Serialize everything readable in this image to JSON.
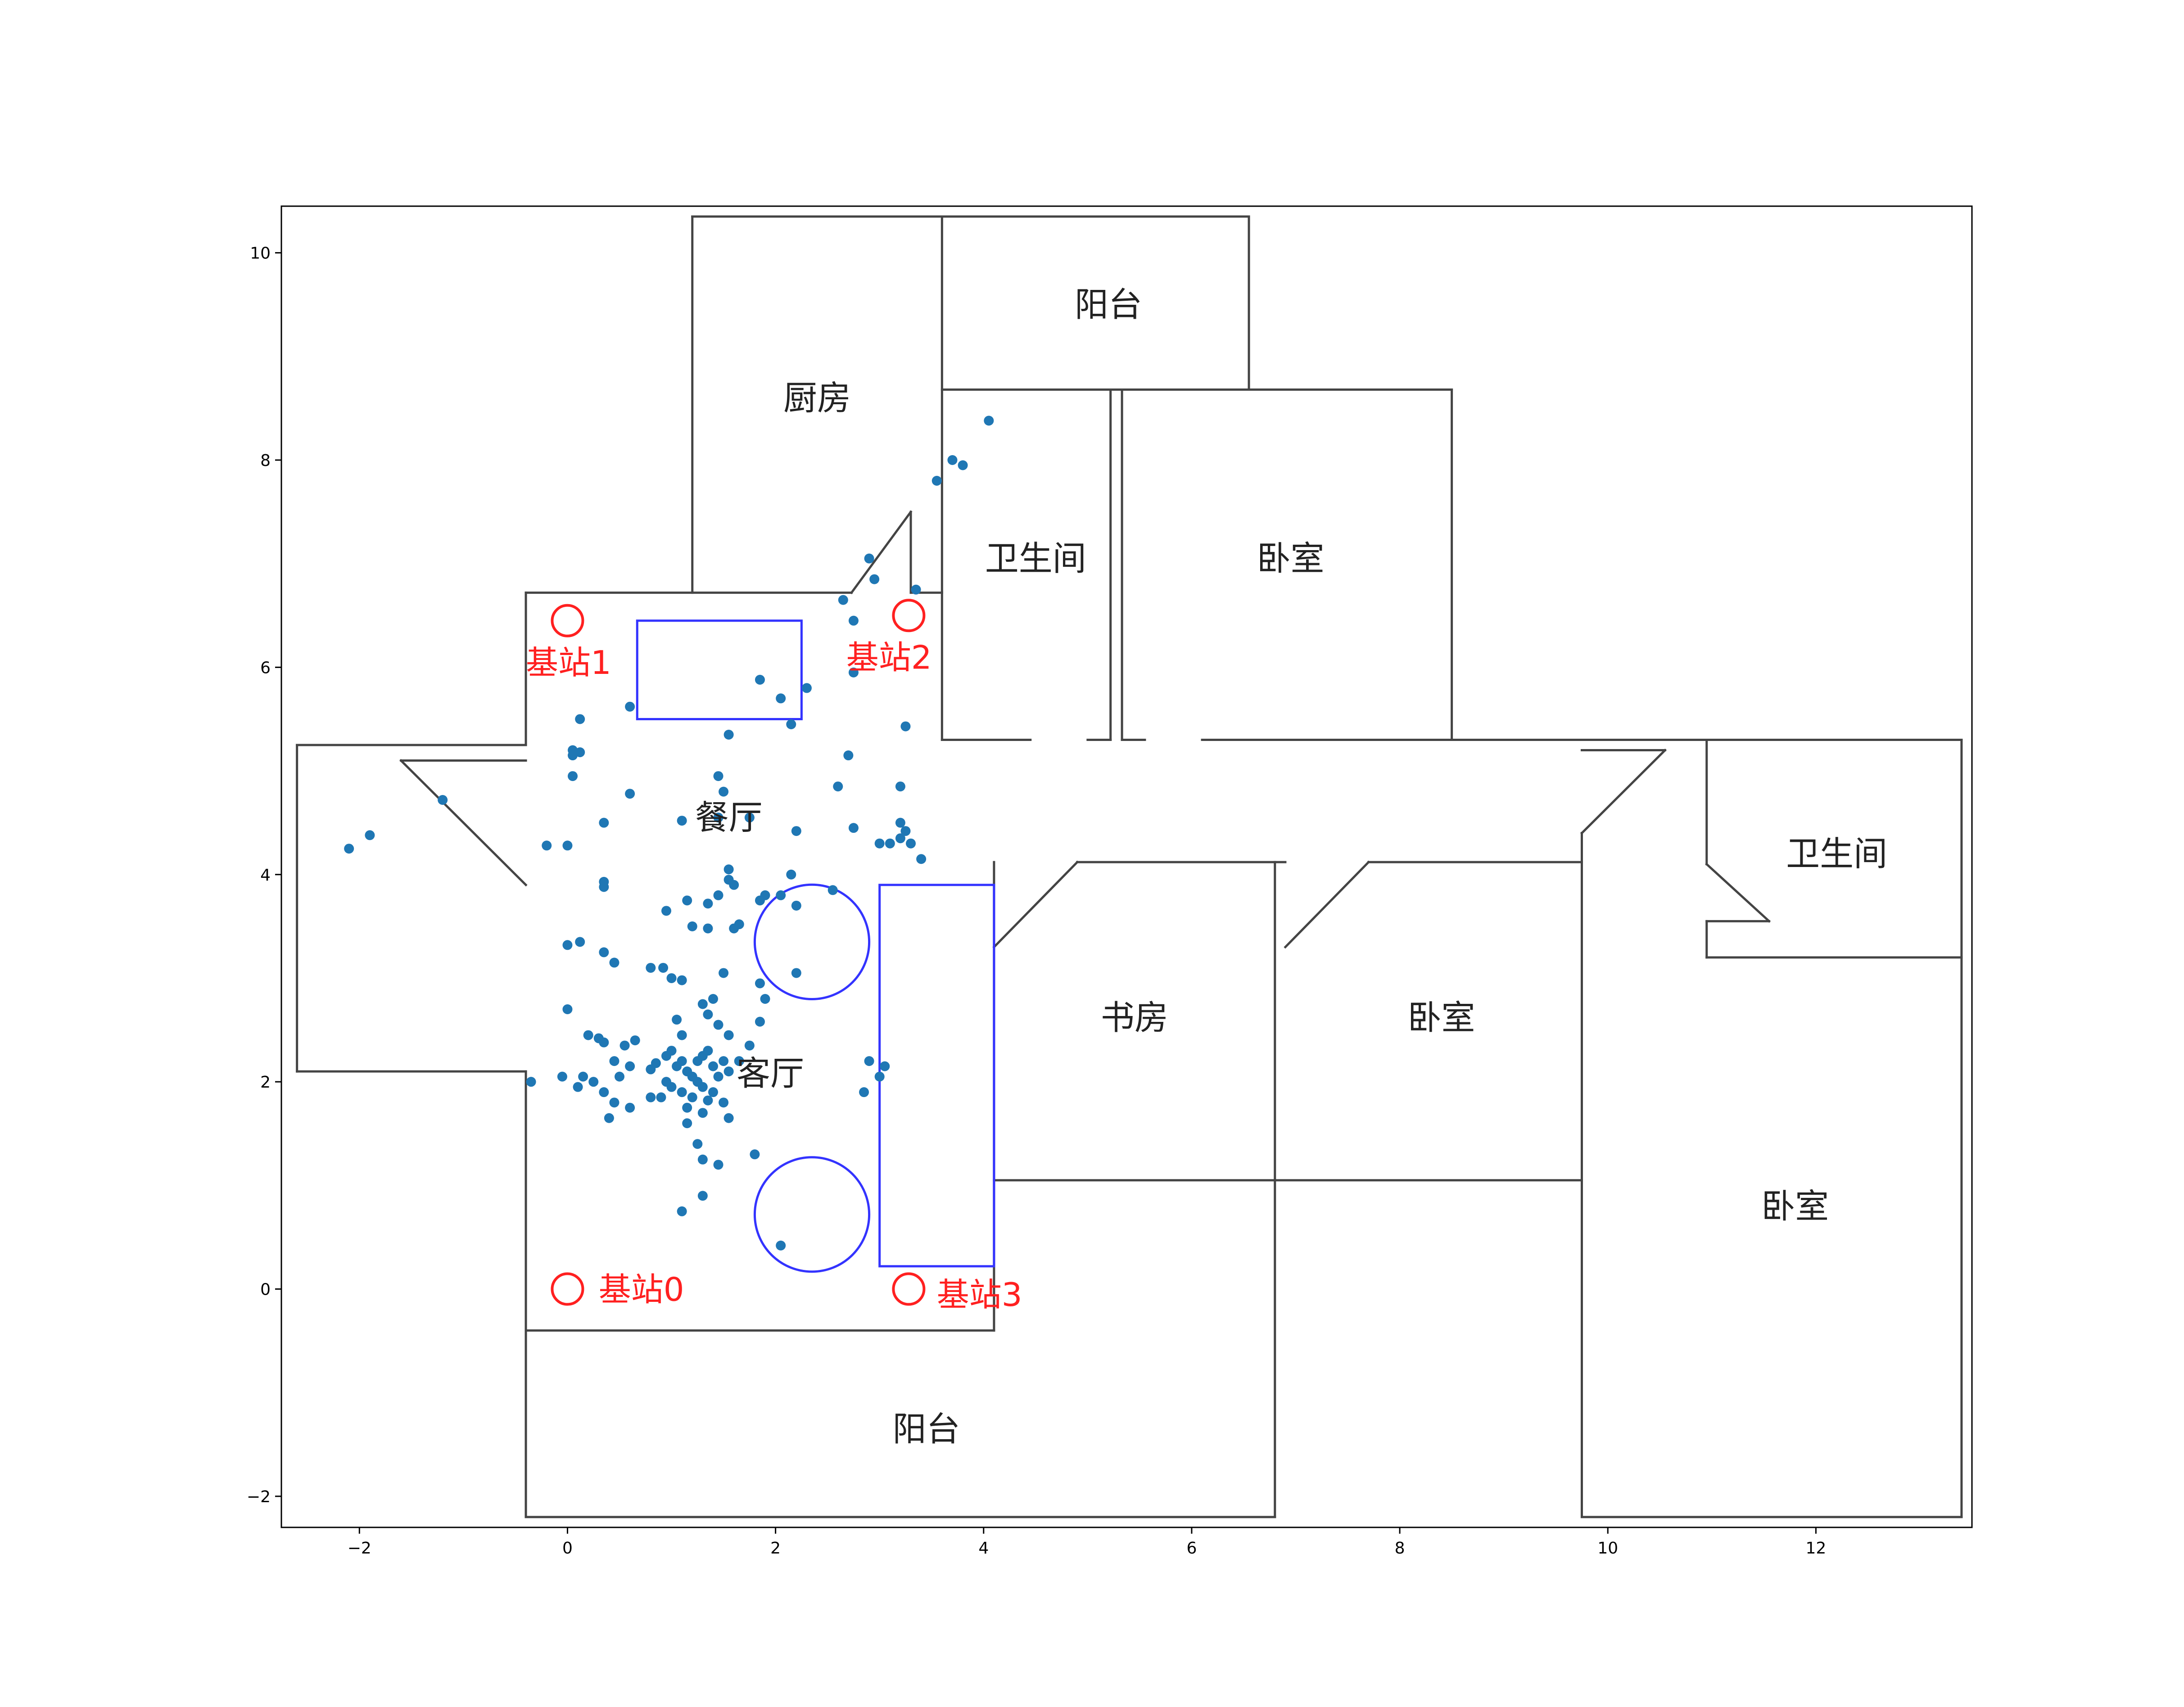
{
  "chart_data": {
    "type": "scatter",
    "title": "",
    "xlabel": "",
    "ylabel": "",
    "xlim": [
      -2.75,
      13.5
    ],
    "ylim": [
      -2.3,
      10.45
    ],
    "grid": false,
    "x_ticks": [
      -2,
      0,
      2,
      4,
      6,
      8,
      10,
      12
    ],
    "y_ticks": [
      -2,
      0,
      2,
      4,
      6,
      8,
      10
    ],
    "x_tick_labels": [
      "−2",
      "0",
      "2",
      "4",
      "6",
      "8",
      "10",
      "12"
    ],
    "y_tick_labels": [
      "−2",
      "0",
      "2",
      "4",
      "6",
      "8",
      "10"
    ],
    "colors": {
      "points": "#1f77b4",
      "walls": "#444444",
      "furniture": "#3333ff",
      "stations": "#ff2020"
    },
    "rooms": [
      {
        "label": "厨房",
        "x": 2.4,
        "y": 8.6
      },
      {
        "label": "阳台",
        "x": 5.2,
        "y": 9.5
      },
      {
        "label": "卫生间",
        "x": 4.5,
        "y": 7.05
      },
      {
        "label": "卧室",
        "x": 6.95,
        "y": 7.05
      },
      {
        "label": "餐厅",
        "x": 1.55,
        "y": 4.55
      },
      {
        "label": "客厅",
        "x": 1.95,
        "y": 2.08
      },
      {
        "label": "书房",
        "x": 5.45,
        "y": 2.62
      },
      {
        "label": "卧室",
        "x": 8.4,
        "y": 2.62
      },
      {
        "label": "卫生间",
        "x": 12.2,
        "y": 4.2
      },
      {
        "label": "卧室",
        "x": 11.8,
        "y": 0.8
      },
      {
        "label": "阳台",
        "x": 3.45,
        "y": -1.35
      }
    ],
    "base_stations": [
      {
        "label": "基站0",
        "x": 0.0,
        "y": 0.0,
        "label_x": 0.3,
        "label_y": 0.0
      },
      {
        "label": "基站1",
        "x": 0.0,
        "y": 6.45,
        "label_x": -0.4,
        "label_y": 6.05
      },
      {
        "label": "基站2",
        "x": 3.28,
        "y": 6.5,
        "label_x": 2.68,
        "label_y": 6.1
      },
      {
        "label": "基站3",
        "x": 3.28,
        "y": 0.0,
        "label_x": 3.55,
        "label_y": -0.05
      }
    ],
    "walls": [
      [
        [
          -0.4,
          -2.2
        ],
        [
          6.8,
          -2.2
        ]
      ],
      [
        [
          -0.4,
          -2.2
        ],
        [
          -0.4,
          -0.4
        ]
      ],
      [
        [
          6.8,
          -2.2
        ],
        [
          6.8,
          4.12
        ]
      ],
      [
        [
          -0.4,
          -0.4
        ],
        [
          4.1,
          -0.4
        ]
      ],
      [
        [
          -0.4,
          -0.4
        ],
        [
          -0.4,
          2.1
        ]
      ],
      [
        [
          -0.4,
          2.1
        ],
        [
          -2.6,
          2.1
        ]
      ],
      [
        [
          -2.6,
          2.1
        ],
        [
          -2.6,
          5.25
        ]
      ],
      [
        [
          -2.6,
          5.25
        ],
        [
          -0.4,
          5.25
        ]
      ],
      [
        [
          -0.4,
          5.25
        ],
        [
          -0.4,
          6.72
        ]
      ],
      [
        [
          -0.4,
          3.9
        ],
        [
          -1.6,
          5.1
        ]
      ],
      [
        [
          -0.4,
          5.1
        ],
        [
          -1.6,
          5.1
        ]
      ],
      [
        [
          -0.4,
          6.72
        ],
        [
          2.73,
          6.72
        ]
      ],
      [
        [
          2.73,
          6.72
        ],
        [
          3.3,
          7.5
        ]
      ],
      [
        [
          3.3,
          7.5
        ],
        [
          3.3,
          6.72
        ]
      ],
      [
        [
          3.3,
          6.72
        ],
        [
          3.6,
          6.72
        ]
      ],
      [
        [
          1.2,
          6.72
        ],
        [
          1.2,
          10.35
        ]
      ],
      [
        [
          1.2,
          10.35
        ],
        [
          3.6,
          10.35
        ]
      ],
      [
        [
          3.6,
          10.35
        ],
        [
          3.6,
          5.3
        ]
      ],
      [
        [
          3.6,
          10.35
        ],
        [
          6.55,
          10.35
        ]
      ],
      [
        [
          6.55,
          10.35
        ],
        [
          6.55,
          8.68
        ]
      ],
      [
        [
          3.6,
          8.68
        ],
        [
          8.5,
          8.68
        ]
      ],
      [
        [
          5.33,
          8.68
        ],
        [
          5.33,
          5.3
        ]
      ],
      [
        [
          5.22,
          5.3
        ],
        [
          5.22,
          8.68
        ]
      ],
      [
        [
          8.5,
          8.68
        ],
        [
          8.5,
          5.3
        ]
      ],
      [
        [
          3.6,
          5.3
        ],
        [
          4.45,
          5.3
        ]
      ],
      [
        [
          5.0,
          5.3
        ],
        [
          5.22,
          5.3
        ]
      ],
      [
        [
          5.33,
          5.3
        ],
        [
          5.55,
          5.3
        ]
      ],
      [
        [
          6.1,
          5.3
        ],
        [
          8.5,
          5.3
        ]
      ],
      [
        [
          8.5,
          5.3
        ],
        [
          13.4,
          5.3
        ]
      ],
      [
        [
          9.75,
          5.2
        ],
        [
          10.55,
          5.2
        ]
      ],
      [
        [
          13.4,
          5.3
        ],
        [
          13.4,
          -2.2
        ]
      ],
      [
        [
          9.75,
          -2.2
        ],
        [
          13.4,
          -2.2
        ]
      ],
      [
        [
          9.75,
          -2.2
        ],
        [
          9.75,
          4.4
        ]
      ],
      [
        [
          9.75,
          4.4
        ],
        [
          10.55,
          5.2
        ]
      ],
      [
        [
          10.95,
          5.3
        ],
        [
          10.95,
          4.1
        ]
      ],
      [
        [
          10.95,
          4.1
        ],
        [
          11.55,
          3.55
        ]
      ],
      [
        [
          10.95,
          3.55
        ],
        [
          11.55,
          3.55
        ]
      ],
      [
        [
          10.95,
          3.55
        ],
        [
          10.95,
          3.2
        ]
      ],
      [
        [
          10.95,
          3.2
        ],
        [
          13.4,
          3.2
        ]
      ],
      [
        [
          4.1,
          -0.4
        ],
        [
          4.1,
          4.12
        ]
      ],
      [
        [
          4.1,
          3.3
        ],
        [
          4.9,
          4.12
        ]
      ],
      [
        [
          4.9,
          4.12
        ],
        [
          6.8,
          4.12
        ]
      ],
      [
        [
          6.8,
          4.12
        ],
        [
          6.9,
          4.12
        ]
      ],
      [
        [
          6.9,
          3.3
        ],
        [
          7.7,
          4.12
        ]
      ],
      [
        [
          7.7,
          4.12
        ],
        [
          9.75,
          4.12
        ]
      ],
      [
        [
          4.1,
          1.05
        ],
        [
          9.75,
          1.05
        ]
      ]
    ],
    "furniture": [
      {
        "shape": "rect",
        "x0": 0.67,
        "y0": 5.5,
        "x1": 2.25,
        "y1": 6.45
      },
      {
        "shape": "rect",
        "x0": 3.0,
        "y0": 0.22,
        "x1": 4.1,
        "y1": 3.9
      },
      {
        "shape": "circle",
        "cx": 2.35,
        "cy": 3.35,
        "r": 0.55
      },
      {
        "shape": "circle",
        "cx": 2.35,
        "cy": 0.72,
        "r": 0.55
      }
    ],
    "points": [
      [
        -2.1,
        4.25
      ],
      [
        -1.9,
        4.38
      ],
      [
        -1.2,
        4.72
      ],
      [
        4.05,
        8.38
      ],
      [
        3.7,
        8.0
      ],
      [
        3.8,
        7.95
      ],
      [
        3.55,
        7.8
      ],
      [
        2.9,
        7.05
      ],
      [
        2.95,
        6.85
      ],
      [
        3.35,
        6.75
      ],
      [
        2.65,
        6.65
      ],
      [
        2.75,
        6.45
      ],
      [
        2.75,
        5.95
      ],
      [
        2.3,
        5.8
      ],
      [
        1.85,
        5.88
      ],
      [
        2.05,
        5.7
      ],
      [
        2.15,
        5.45
      ],
      [
        3.25,
        5.43
      ],
      [
        0.05,
        5.2
      ],
      [
        0.12,
        5.18
      ],
      [
        0.05,
        5.15
      ],
      [
        0.12,
        5.5
      ],
      [
        0.6,
        5.62
      ],
      [
        1.55,
        5.35
      ],
      [
        0.05,
        4.95
      ],
      [
        0.6,
        4.78
      ],
      [
        1.45,
        4.95
      ],
      [
        1.5,
        4.8
      ],
      [
        2.6,
        4.85
      ],
      [
        2.7,
        5.15
      ],
      [
        3.2,
        4.85
      ],
      [
        0.35,
        4.5
      ],
      [
        1.1,
        4.52
      ],
      [
        1.75,
        4.55
      ],
      [
        2.2,
        4.42
      ],
      [
        1.45,
        4.55
      ],
      [
        2.15,
        4.0
      ],
      [
        -0.2,
        4.28
      ],
      [
        0.0,
        4.28
      ],
      [
        0.35,
        3.93
      ],
      [
        0.35,
        3.88
      ],
      [
        1.55,
        4.05
      ],
      [
        1.6,
        3.9
      ],
      [
        0.95,
        3.65
      ],
      [
        1.15,
        3.75
      ],
      [
        1.35,
        3.72
      ],
      [
        1.45,
        3.8
      ],
      [
        1.55,
        3.95
      ],
      [
        1.9,
        3.8
      ],
      [
        2.05,
        3.8
      ],
      [
        1.85,
        3.75
      ],
      [
        2.2,
        3.7
      ],
      [
        2.55,
        3.85
      ],
      [
        3.2,
        4.35
      ],
      [
        3.2,
        4.5
      ],
      [
        3.25,
        4.42
      ],
      [
        3.3,
        4.3
      ],
      [
        3.4,
        4.15
      ],
      [
        3.1,
        4.3
      ],
      [
        3.0,
        4.3
      ],
      [
        2.75,
        4.45
      ],
      [
        0.0,
        3.32
      ],
      [
        0.12,
        3.35
      ],
      [
        0.35,
        3.25
      ],
      [
        0.45,
        3.15
      ],
      [
        0.8,
        3.1
      ],
      [
        0.92,
        3.1
      ],
      [
        1.0,
        3.0
      ],
      [
        1.1,
        2.98
      ],
      [
        1.2,
        3.5
      ],
      [
        1.35,
        3.48
      ],
      [
        1.6,
        3.48
      ],
      [
        1.65,
        3.52
      ],
      [
        1.5,
        3.05
      ],
      [
        1.4,
        2.8
      ],
      [
        1.85,
        2.95
      ],
      [
        2.2,
        3.05
      ],
      [
        1.9,
        2.8
      ],
      [
        0.0,
        2.7
      ],
      [
        0.2,
        2.45
      ],
      [
        0.3,
        2.42
      ],
      [
        0.35,
        2.38
      ],
      [
        0.55,
        2.35
      ],
      [
        0.65,
        2.4
      ],
      [
        0.45,
        2.2
      ],
      [
        0.6,
        2.15
      ],
      [
        0.5,
        2.05
      ],
      [
        0.8,
        2.12
      ],
      [
        0.85,
        2.18
      ],
      [
        0.95,
        2.25
      ],
      [
        1.0,
        2.3
      ],
      [
        1.05,
        2.15
      ],
      [
        1.1,
        2.2
      ],
      [
        1.15,
        2.1
      ],
      [
        1.2,
        2.05
      ],
      [
        1.25,
        2.2
      ],
      [
        1.3,
        2.25
      ],
      [
        1.35,
        2.3
      ],
      [
        1.4,
        2.15
      ],
      [
        1.45,
        2.05
      ],
      [
        1.5,
        2.2
      ],
      [
        1.55,
        2.1
      ],
      [
        1.05,
        2.6
      ],
      [
        1.1,
        2.45
      ],
      [
        1.3,
        2.75
      ],
      [
        1.35,
        2.65
      ],
      [
        1.45,
        2.55
      ],
      [
        1.55,
        2.45
      ],
      [
        1.65,
        2.2
      ],
      [
        1.75,
        2.35
      ],
      [
        1.85,
        2.58
      ],
      [
        0.95,
        2.0
      ],
      [
        1.0,
        1.95
      ],
      [
        1.1,
        1.9
      ],
      [
        1.2,
        1.85
      ],
      [
        1.3,
        1.95
      ],
      [
        1.35,
        1.82
      ],
      [
        1.4,
        1.9
      ],
      [
        1.5,
        1.8
      ],
      [
        1.25,
        2.0
      ],
      [
        0.15,
        2.05
      ],
      [
        0.25,
        2.0
      ],
      [
        0.1,
        1.95
      ],
      [
        0.35,
        1.9
      ],
      [
        0.45,
        1.8
      ],
      [
        0.6,
        1.75
      ],
      [
        0.8,
        1.85
      ],
      [
        0.9,
        1.85
      ],
      [
        1.15,
        1.75
      ],
      [
        1.3,
        1.7
      ],
      [
        1.55,
        1.65
      ],
      [
        0.4,
        1.65
      ],
      [
        -0.35,
        2.0
      ],
      [
        -0.05,
        2.05
      ],
      [
        2.9,
        2.2
      ],
      [
        3.05,
        2.15
      ],
      [
        3.0,
        2.05
      ],
      [
        2.85,
        1.9
      ],
      [
        1.15,
        1.6
      ],
      [
        1.25,
        1.4
      ],
      [
        1.45,
        1.2
      ],
      [
        1.3,
        1.25
      ],
      [
        1.8,
        1.3
      ],
      [
        1.3,
        0.9
      ],
      [
        1.1,
        0.75
      ],
      [
        2.05,
        0.42
      ]
    ]
  }
}
